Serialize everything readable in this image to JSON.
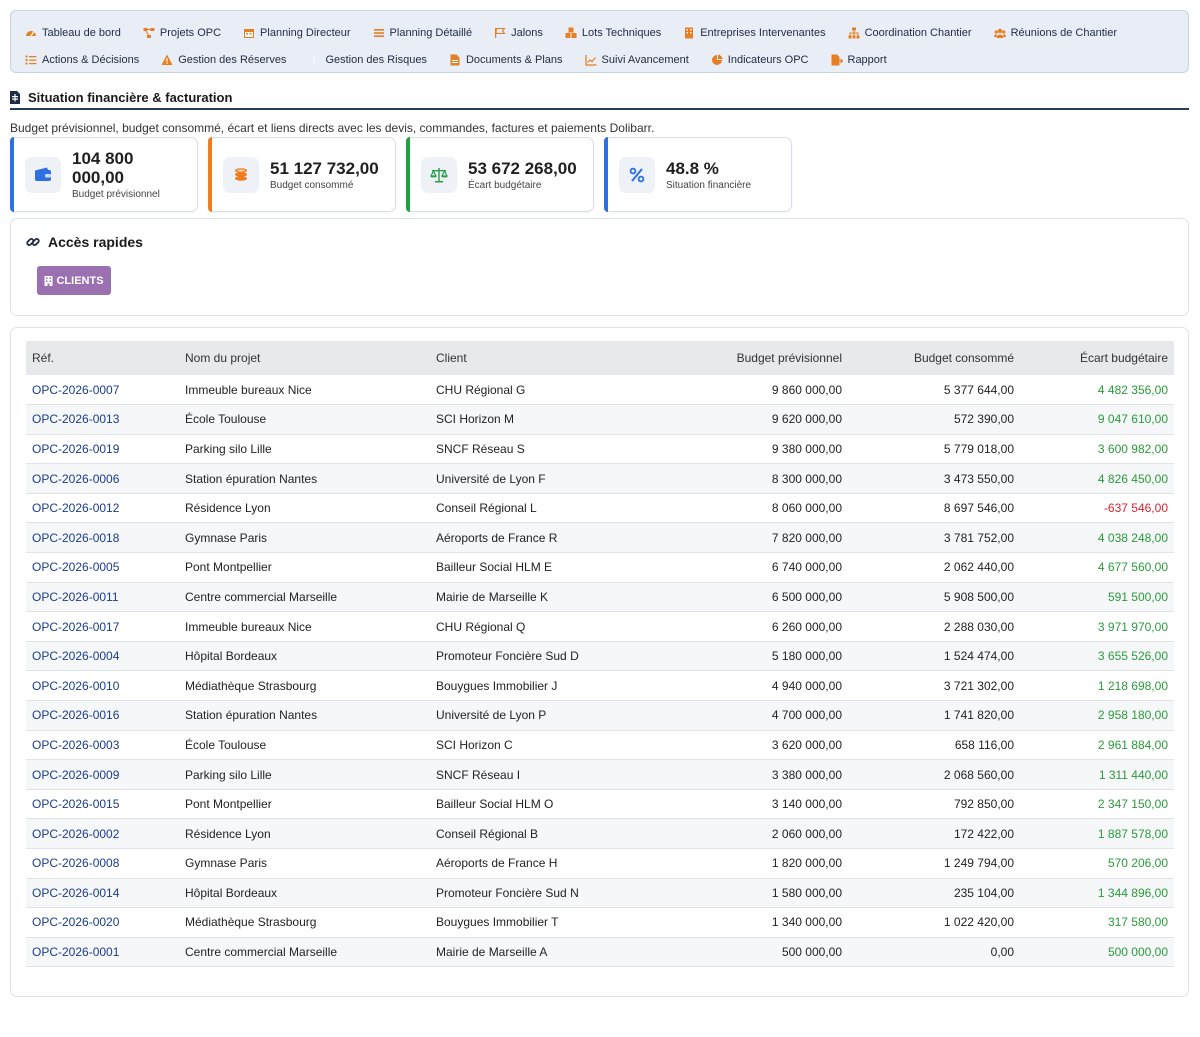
{
  "nav": {
    "row1": [
      {
        "label": "Tableau de bord",
        "icon": "dashboard-icon"
      },
      {
        "label": "Projets OPC",
        "icon": "project-diagram-icon"
      },
      {
        "label": "Planning Directeur",
        "icon": "calendar-icon"
      },
      {
        "label": "Planning Détaillé",
        "icon": "list-icon"
      },
      {
        "label": "Jalons",
        "icon": "flag-icon"
      },
      {
        "label": "Lots Techniques",
        "icon": "cubes-icon"
      },
      {
        "label": "Entreprises Intervenantes",
        "icon": "building-icon"
      },
      {
        "label": "Coordination Chantier",
        "icon": "sitemap-icon"
      },
      {
        "label": "Réunions de Chantier",
        "icon": "users-icon"
      }
    ],
    "row2": [
      {
        "label": "Actions & Décisions",
        "icon": "tasks-icon"
      },
      {
        "label": "Gestion des Réserves",
        "icon": "warning-icon"
      },
      {
        "label": "Gestion des Risques",
        "icon": "shield-icon"
      },
      {
        "label": "Documents & Plans",
        "icon": "file-icon"
      },
      {
        "label": "Suivi Avancement",
        "icon": "chart-line-icon"
      },
      {
        "label": "Indicateurs OPC",
        "icon": "pie-chart-icon"
      },
      {
        "label": "Rapport",
        "icon": "file-export-icon"
      }
    ],
    "icon_color": "#e67e22"
  },
  "section": {
    "title": "Situation financière & facturation",
    "description": "Budget prévisionnel, budget consommé, écart et liens directs avec les devis, commandes, factures et paiements Dolibarr."
  },
  "kpis": [
    {
      "value": "104 800 000,00",
      "label": "Budget prévisionnel",
      "icon": "wallet-icon",
      "bar": "#2f6fe4",
      "icon_color": "#2f6fe4"
    },
    {
      "value": "51 127 732,00",
      "label": "Budget consommé",
      "icon": "coins-icon",
      "bar": "#f07c1c",
      "icon_color": "#f07c1c"
    },
    {
      "value": "53 672 268,00",
      "label": "Écart budgétaire",
      "icon": "balance-scale-icon",
      "bar": "#25a046",
      "icon_color": "#25a046"
    },
    {
      "value": "48.8 %",
      "label": "Situation financière",
      "icon": "percent-icon",
      "bar": "#2f6fe4",
      "icon_color": "#2f6fe4"
    }
  ],
  "quick_access": {
    "title": "Accès rapides",
    "clients_label": "CLIENTS"
  },
  "table": {
    "headers": [
      "Réf.",
      "Nom du projet",
      "Client",
      "Budget prévisionnel",
      "Budget consommé",
      "Écart budgétaire"
    ],
    "rows": [
      [
        "OPC-2026-0007",
        "Immeuble bureaux Nice",
        "CHU Régional G",
        "9 860 000,00",
        "5 377 644,00",
        "4 482 356,00"
      ],
      [
        "OPC-2026-0013",
        "École Toulouse",
        "SCI Horizon M",
        "9 620 000,00",
        "572 390,00",
        "9 047 610,00"
      ],
      [
        "OPC-2026-0019",
        "Parking silo Lille",
        "SNCF Réseau S",
        "9 380 000,00",
        "5 779 018,00",
        "3 600 982,00"
      ],
      [
        "OPC-2026-0006",
        "Station épuration Nantes",
        "Université de Lyon F",
        "8 300 000,00",
        "3 473 550,00",
        "4 826 450,00"
      ],
      [
        "OPC-2026-0012",
        "Résidence Lyon",
        "Conseil Régional L",
        "8 060 000,00",
        "8 697 546,00",
        "-637 546,00"
      ],
      [
        "OPC-2026-0018",
        "Gymnase Paris",
        "Aéroports de France R",
        "7 820 000,00",
        "3 781 752,00",
        "4 038 248,00"
      ],
      [
        "OPC-2026-0005",
        "Pont Montpellier",
        "Bailleur Social HLM E",
        "6 740 000,00",
        "2 062 440,00",
        "4 677 560,00"
      ],
      [
        "OPC-2026-0011",
        "Centre commercial Marseille",
        "Mairie de Marseille K",
        "6 500 000,00",
        "5 908 500,00",
        "591 500,00"
      ],
      [
        "OPC-2026-0017",
        "Immeuble bureaux Nice",
        "CHU Régional Q",
        "6 260 000,00",
        "2 288 030,00",
        "3 971 970,00"
      ],
      [
        "OPC-2026-0004",
        "Hôpital Bordeaux",
        "Promoteur Foncière Sud D",
        "5 180 000,00",
        "1 524 474,00",
        "3 655 526,00"
      ],
      [
        "OPC-2026-0010",
        "Médiathèque Strasbourg",
        "Bouygues Immobilier J",
        "4 940 000,00",
        "3 721 302,00",
        "1 218 698,00"
      ],
      [
        "OPC-2026-0016",
        "Station épuration Nantes",
        "Université de Lyon P",
        "4 700 000,00",
        "1 741 820,00",
        "2 958 180,00"
      ],
      [
        "OPC-2026-0003",
        "École Toulouse",
        "SCI Horizon C",
        "3 620 000,00",
        "658 116,00",
        "2 961 884,00"
      ],
      [
        "OPC-2026-0009",
        "Parking silo Lille",
        "SNCF Réseau I",
        "3 380 000,00",
        "2 068 560,00",
        "1 311 440,00"
      ],
      [
        "OPC-2026-0015",
        "Pont Montpellier",
        "Bailleur Social HLM O",
        "3 140 000,00",
        "792 850,00",
        "2 347 150,00"
      ],
      [
        "OPC-2026-0002",
        "Résidence Lyon",
        "Conseil Régional B",
        "2 060 000,00",
        "172 422,00",
        "1 887 578,00"
      ],
      [
        "OPC-2026-0008",
        "Gymnase Paris",
        "Aéroports de France H",
        "1 820 000,00",
        "1 249 794,00",
        "570 206,00"
      ],
      [
        "OPC-2026-0014",
        "Hôpital Bordeaux",
        "Promoteur Foncière Sud N",
        "1 580 000,00",
        "235 104,00",
        "1 344 896,00"
      ],
      [
        "OPC-2026-0020",
        "Médiathèque Strasbourg",
        "Bouygues Immobilier T",
        "1 340 000,00",
        "1 022 420,00",
        "317 580,00"
      ],
      [
        "OPC-2026-0001",
        "Centre commercial Marseille",
        "Mairie de Marseille A",
        "500 000,00",
        "0,00",
        "500 000,00"
      ]
    ],
    "colors": {
      "ref": "#1a3c8c",
      "positive": "#2a9a3a",
      "negative": "#d3262e"
    }
  }
}
